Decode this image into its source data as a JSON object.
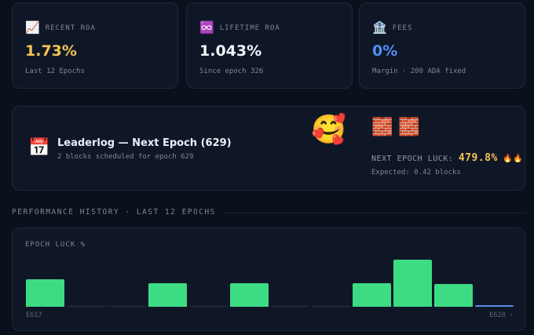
{
  "cards": [
    {
      "icon": "📈",
      "label": "RECENT ROA",
      "value": "1.73%",
      "sub": "Last 12 Epochs",
      "color": "#f5c451"
    },
    {
      "icon": "♾️",
      "label": "LIFETIME ROA",
      "value": "1.043%",
      "sub": "Since epoch 326",
      "color": "#f1f4f9"
    },
    {
      "icon": "🏦",
      "label": "FEES",
      "value": "0%",
      "sub": "Margin · 200 ADA fixed",
      "color": "#4f8ff7"
    }
  ],
  "leaderlog": {
    "icon": "📅",
    "title": "Leaderlog — Next Epoch (629)",
    "sub": "2 blocks scheduled for epoch 629",
    "mascot": "🥰",
    "blocks": "🧱 🧱",
    "luck_label": "NEXT EPOCH LUCK:",
    "luck_value": "479.8%",
    "luck_icon": "🔥🔥",
    "expected": "Expected: 0.42 blocks"
  },
  "section_title": "PERFORMANCE HISTORY · LAST 12 EPOCHS",
  "chart_data": {
    "type": "bar",
    "title": "EPOCH LUCK %",
    "categories": [
      "E617",
      null,
      null,
      null,
      null,
      null,
      null,
      null,
      null,
      null,
      null,
      "E628 ›"
    ],
    "values": [
      117,
      0,
      0,
      100,
      0,
      100,
      0,
      0,
      100,
      200,
      97,
      8
    ],
    "color": "#3ddc84",
    "highlight_color": "#5b8def"
  }
}
